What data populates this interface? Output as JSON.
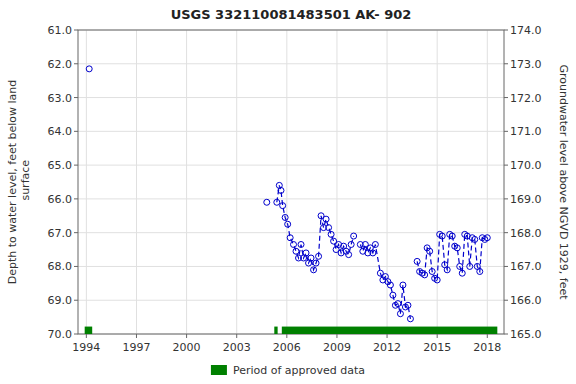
{
  "chart_data": {
    "type": "line",
    "title": "USGS 332110081483501 AK- 902",
    "ylabel": "Depth to water level, feet below land\n surface",
    "y2label": "Groundwater level above NGVD 1929, feet",
    "xlim": [
      1993.5,
      2019.0
    ],
    "ylim": [
      70.0,
      61.0
    ],
    "y2lim": [
      165.0,
      174.0
    ],
    "xticks": [
      1994,
      1997,
      2000,
      2003,
      2006,
      2009,
      2012,
      2015,
      2018
    ],
    "yticks": [
      {
        "value": 61.0,
        "label": "61.0"
      },
      {
        "value": 62.0,
        "label": "62.0"
      },
      {
        "value": 63.0,
        "label": "63.0"
      },
      {
        "value": 64.0,
        "label": "64.0"
      },
      {
        "value": 65.0,
        "label": "65.0"
      },
      {
        "value": 66.0,
        "label": "66.0"
      },
      {
        "value": 67.0,
        "label": "67.0"
      },
      {
        "value": 68.0,
        "label": "68.0"
      },
      {
        "value": 69.0,
        "label": "69.0"
      },
      {
        "value": 70.0,
        "label": "70.0"
      }
    ],
    "y2ticks": [
      {
        "value": 165.0,
        "label": "165.0"
      },
      {
        "value": 166.0,
        "label": "166.0"
      },
      {
        "value": 167.0,
        "label": "167.0"
      },
      {
        "value": 168.0,
        "label": "168.0"
      },
      {
        "value": 169.0,
        "label": "169.0"
      },
      {
        "value": 170.0,
        "label": "170.0"
      },
      {
        "value": 171.0,
        "label": "171.0"
      },
      {
        "value": 172.0,
        "label": "172.0"
      },
      {
        "value": 173.0,
        "label": "173.0"
      },
      {
        "value": 174.0,
        "label": "174.0"
      }
    ],
    "grid": true,
    "legend": "bottom",
    "series": [
      {
        "type": "line",
        "color": "#0000cc",
        "marker": "circle",
        "line_style": "dashed",
        "x": [
          1994.17
        ],
        "values": [
          62.15
        ]
      },
      {
        "type": "line",
        "color": "#0000cc",
        "marker": "circle",
        "line_style": "dashed",
        "x": [
          2004.8
        ],
        "values": [
          66.1
        ]
      },
      {
        "type": "line",
        "color": "#0000cc",
        "marker": "circle",
        "line_style": "dashed",
        "x": [
          2005.4,
          2005.55,
          2005.65,
          2005.75,
          2005.9,
          2006.05,
          2006.2,
          2006.4,
          2006.55,
          2006.7,
          2006.85,
          2007.0,
          2007.15,
          2007.3,
          2007.45,
          2007.6,
          2007.75,
          2007.9,
          2008.05,
          2008.2,
          2008.35,
          2008.5,
          2008.65,
          2008.8,
          2008.95,
          2009.1,
          2009.25,
          2009.4,
          2009.55,
          2009.7,
          2009.85,
          2010.0
        ],
        "values": [
          66.1,
          65.6,
          65.75,
          66.2,
          66.55,
          66.75,
          67.15,
          67.35,
          67.55,
          67.75,
          67.35,
          67.75,
          67.6,
          67.9,
          67.75,
          68.1,
          67.9,
          67.7,
          66.5,
          66.85,
          66.6,
          66.85,
          67.05,
          67.25,
          67.5,
          67.35,
          67.6,
          67.4,
          67.55,
          67.65,
          67.35,
          67.1
        ]
      },
      {
        "type": "line",
        "color": "#0000cc",
        "marker": "circle",
        "line_style": "dashed",
        "x": [
          2010.4,
          2010.55,
          2010.7,
          2010.85,
          2011.0,
          2011.15,
          2011.3,
          2011.6,
          2011.75,
          2011.9,
          2012.05,
          2012.2,
          2012.35,
          2012.5,
          2012.65,
          2012.8,
          2012.95,
          2013.1,
          2013.25,
          2013.4
        ],
        "values": [
          67.35,
          67.55,
          67.35,
          67.6,
          67.45,
          67.6,
          67.35,
          68.2,
          68.4,
          68.3,
          68.45,
          68.55,
          68.85,
          69.15,
          69.1,
          69.4,
          68.55,
          69.2,
          69.15,
          69.55
        ]
      },
      {
        "type": "line",
        "color": "#0000cc",
        "marker": "circle",
        "line_style": "dashed",
        "x": [
          2013.8,
          2013.95,
          2014.1,
          2014.25,
          2014.4,
          2014.55,
          2014.7,
          2014.85,
          2015.0,
          2015.15,
          2015.3,
          2015.45,
          2015.6,
          2015.75,
          2015.9,
          2016.05,
          2016.2,
          2016.35,
          2016.5,
          2016.65,
          2016.8,
          2016.95,
          2017.1,
          2017.25,
          2017.4,
          2017.55,
          2017.7,
          2017.85,
          2018.0
        ],
        "values": [
          67.85,
          68.15,
          68.2,
          68.25,
          67.45,
          67.55,
          68.15,
          68.35,
          68.4,
          67.05,
          67.1,
          67.95,
          68.1,
          67.05,
          67.1,
          67.4,
          67.45,
          68.0,
          68.2,
          67.05,
          67.1,
          68.0,
          67.15,
          67.2,
          68.0,
          68.15,
          67.15,
          67.2,
          67.15
        ]
      },
      {
        "name": "Period of approved data",
        "type": "range",
        "color": "#008000",
        "periods": [
          [
            1993.9,
            1994.35
          ],
          [
            2005.25,
            2005.45
          ],
          [
            2005.7,
            2018.6
          ]
        ],
        "base": 70.0,
        "height": 0.22
      }
    ]
  }
}
